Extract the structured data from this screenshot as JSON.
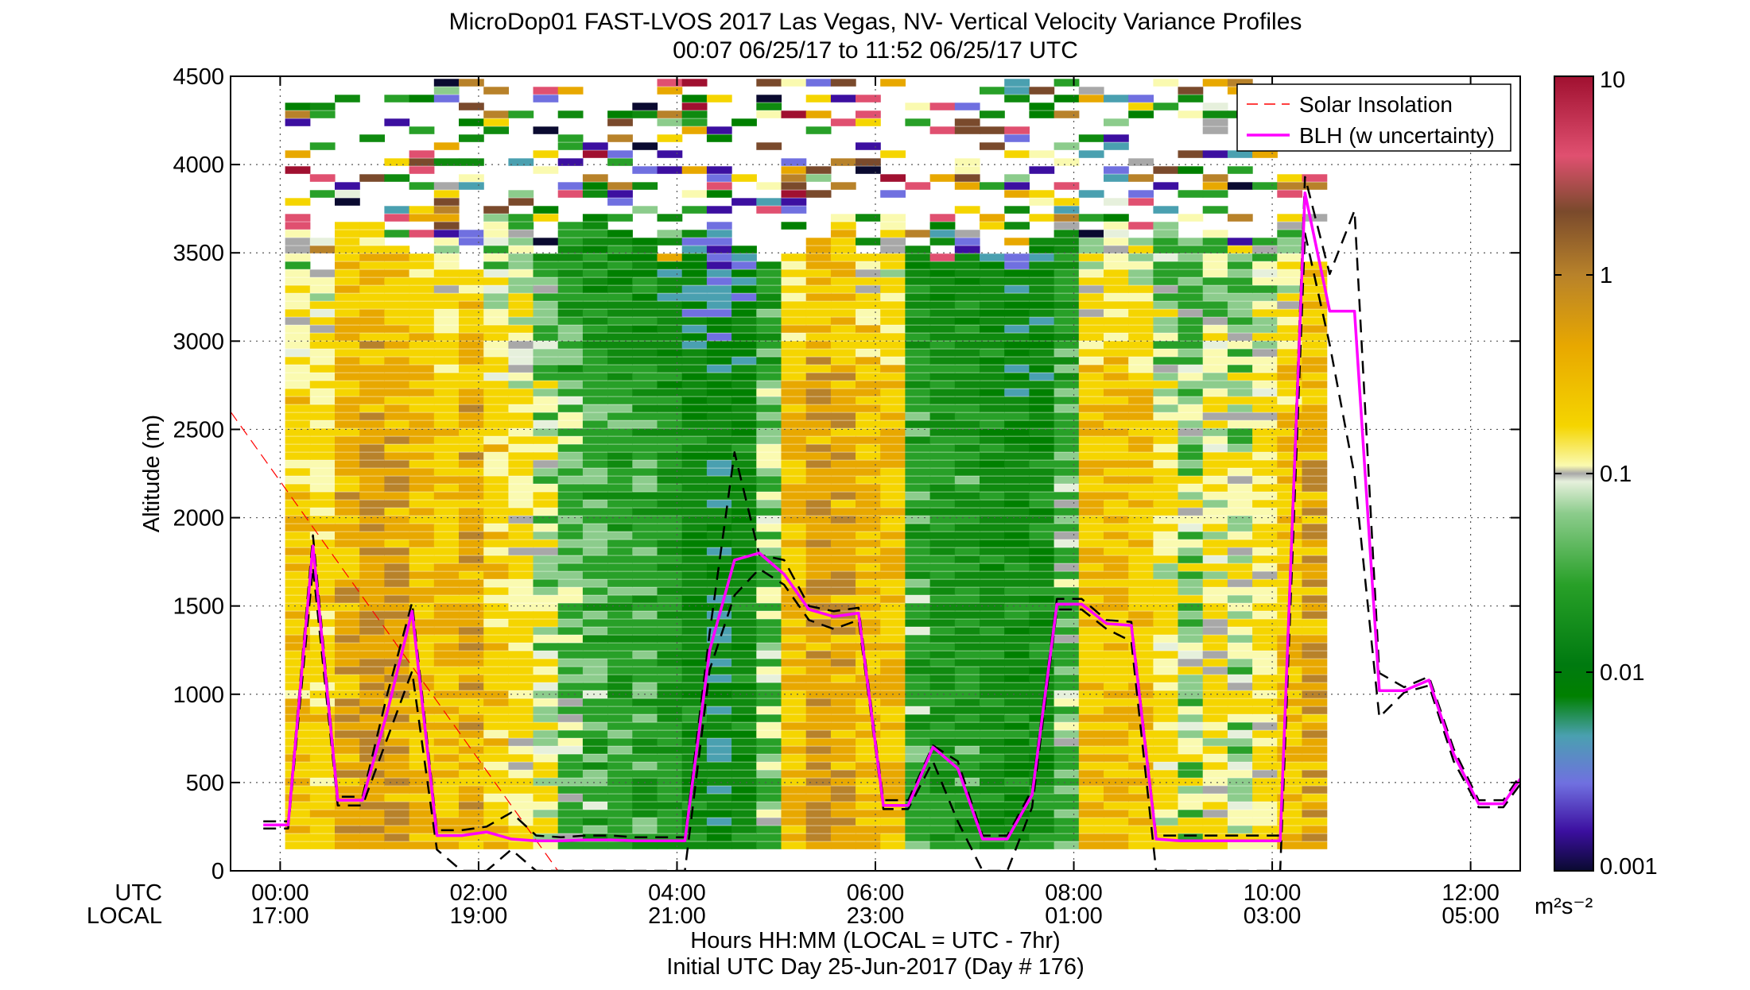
{
  "chart_data": {
    "type": "heatmap",
    "title": "MicroDop01 FAST-LVOS 2017 Las Vegas, NV- Vertical Velocity Variance Profiles",
    "subtitle": "00:07 06/25/17 to 11:52 06/25/17  UTC",
    "ylabel": "Altitude (m)",
    "ylim": [
      0,
      4500
    ],
    "y_ticks": [
      "0",
      "500",
      "1000",
      "1500",
      "2000",
      "2500",
      "3000",
      "3500",
      "4000",
      "4500"
    ],
    "xlim_hours": [
      -0.5,
      12.5
    ],
    "x_rows": [
      {
        "label": "UTC",
        "ticks": [
          "00:00",
          "02:00",
          "04:00",
          "06:00",
          "08:00",
          "10:00",
          "12:00"
        ]
      },
      {
        "label": "LOCAL",
        "ticks": [
          "17:00",
          "19:00",
          "21:00",
          "23:00",
          "01:00",
          "03:00",
          "05:00"
        ]
      }
    ],
    "x_tick_hours": [
      0,
      2,
      4,
      6,
      8,
      10,
      12
    ],
    "xlabel": "Hours HH:MM  (LOCAL = UTC - 7hr)",
    "xlabel2": "Initial UTC Day 25-Jun-2017 (Day # 176)",
    "colorbar": {
      "scale": "log",
      "range": [
        0.001,
        10
      ],
      "ticks": [
        "10",
        "1",
        "0.1",
        "0.01",
        "0.001"
      ],
      "tick_values": [
        10,
        1,
        0.1,
        0.01,
        0.001
      ],
      "units": "m²s⁻²"
    },
    "legend": {
      "position": "top-right",
      "entries": [
        "Solar Insolation",
        "BLH (w uncertainty)"
      ]
    },
    "series": [
      {
        "name": "BLH (w uncertainty)",
        "color": "#ff00ff",
        "x": [
          -0.17,
          0.08,
          0.33,
          0.58,
          0.83,
          1.08,
          1.33,
          1.58,
          1.83,
          2.08,
          2.33,
          2.58,
          2.83,
          3.08,
          3.33,
          3.58,
          3.83,
          4.08,
          4.33,
          4.58,
          4.83,
          5.08,
          5.33,
          5.58,
          5.83,
          6.08,
          6.33,
          6.58,
          6.83,
          7.08,
          7.33,
          7.58,
          7.83,
          8.08,
          8.33,
          8.58,
          8.83,
          9.08,
          9.33,
          9.58,
          9.83,
          10.08,
          10.33,
          10.58,
          10.83,
          11.08,
          11.33,
          11.58,
          11.83,
          12.08,
          12.33,
          12.5
        ],
        "y": [
          260,
          260,
          1840,
          400,
          400,
          900,
          1470,
          200,
          200,
          220,
          180,
          170,
          170,
          175,
          175,
          170,
          170,
          170,
          1250,
          1760,
          1800,
          1680,
          1480,
          1440,
          1460,
          370,
          370,
          700,
          580,
          180,
          180,
          430,
          1510,
          1510,
          1400,
          1390,
          180,
          170,
          170,
          170,
          170,
          170,
          3840,
          3170,
          3170,
          1020,
          1020,
          1080,
          660,
          380,
          380,
          520
        ]
      },
      {
        "name": "BLH lower bound",
        "color": "#000000",
        "dashed": true,
        "x": [
          -0.17,
          0.08,
          0.33,
          0.58,
          0.83,
          1.08,
          1.33,
          1.58,
          1.83,
          2.08,
          2.33,
          2.58,
          2.83,
          3.08,
          3.33,
          3.58,
          3.83,
          4.08,
          4.33,
          4.58,
          4.83,
          5.08,
          5.33,
          5.58,
          5.83,
          6.08,
          6.33,
          6.58,
          6.83,
          7.08,
          7.33,
          7.58,
          7.83,
          8.08,
          8.33,
          8.58,
          8.83,
          9.08,
          9.33,
          9.58,
          9.83,
          10.08,
          10.33,
          10.58,
          10.83,
          11.08,
          11.33,
          11.58,
          11.83,
          12.08,
          12.33,
          12.5
        ],
        "y": [
          240,
          240,
          1720,
          370,
          370,
          750,
          1130,
          120,
          0,
          0,
          120,
          0,
          0,
          0,
          0,
          0,
          0,
          0,
          1140,
          1560,
          1710,
          1620,
          1420,
          1370,
          1420,
          350,
          350,
          620,
          280,
          0,
          0,
          360,
          1480,
          1480,
          1370,
          1300,
          0,
          0,
          0,
          0,
          0,
          0,
          3610,
          2980,
          2240,
          870,
          1010,
          1050,
          620,
          360,
          360,
          490
        ]
      },
      {
        "name": "BLH upper bound",
        "color": "#000000",
        "dashed": true,
        "x": [
          -0.17,
          0.08,
          0.33,
          0.58,
          0.83,
          1.08,
          1.33,
          1.58,
          1.83,
          2.08,
          2.33,
          2.58,
          2.83,
          3.08,
          3.33,
          3.58,
          3.83,
          4.08,
          4.33,
          4.58,
          4.83,
          5.08,
          5.33,
          5.58,
          5.83,
          6.08,
          6.33,
          6.58,
          6.83,
          7.08,
          7.33,
          7.58,
          7.83,
          8.08,
          8.33,
          8.58,
          8.83,
          9.08,
          9.33,
          9.58,
          9.83,
          10.08,
          10.33,
          10.58,
          10.83,
          11.08,
          11.33,
          11.58,
          11.83,
          12.08,
          12.33,
          12.5
        ],
        "y": [
          280,
          280,
          1900,
          420,
          420,
          1000,
          1520,
          230,
          230,
          250,
          330,
          200,
          190,
          200,
          200,
          190,
          190,
          190,
          1350,
          2370,
          1790,
          1760,
          1500,
          1470,
          1490,
          400,
          400,
          710,
          620,
          200,
          200,
          460,
          1540,
          1540,
          1420,
          1410,
          200,
          200,
          200,
          200,
          200,
          200,
          3930,
          3380,
          3740,
          1120,
          1040,
          1100,
          690,
          400,
          400,
          540
        ]
      },
      {
        "name": "Solar Insolation",
        "color": "#ff0000",
        "dashed": true,
        "x": [
          -0.5,
          2.8
        ],
        "y": [
          2600,
          0
        ]
      }
    ]
  }
}
